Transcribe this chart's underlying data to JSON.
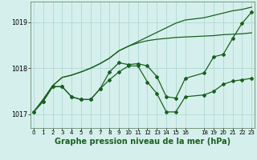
{
  "background_color": "#d5f0ec",
  "grid_color": "#b0d8d5",
  "line_color": "#1a6020",
  "marker_color": "#1a6020",
  "title": "Graphe pression niveau de la mer (hPa)",
  "title_fontsize": 7.0,
  "xlim": [
    -0.3,
    23.3
  ],
  "ylim": [
    1016.7,
    1019.45
  ],
  "yticks": [
    1017,
    1018,
    1019
  ],
  "xticks": [
    0,
    1,
    2,
    3,
    4,
    5,
    6,
    7,
    8,
    9,
    10,
    11,
    12,
    13,
    14,
    15,
    16,
    18,
    19,
    20,
    21,
    22,
    23
  ],
  "series": [
    {
      "x": [
        0,
        1,
        2,
        3,
        4,
        5,
        6,
        7,
        8,
        9,
        10,
        11,
        12,
        13,
        14,
        15,
        16,
        18,
        19,
        20,
        21,
        22,
        23
      ],
      "y": [
        1017.05,
        1017.32,
        1017.62,
        1017.8,
        1017.85,
        1017.92,
        1018.0,
        1018.1,
        1018.22,
        1018.38,
        1018.48,
        1018.58,
        1018.68,
        1018.78,
        1018.88,
        1018.98,
        1019.05,
        1019.1,
        1019.15,
        1019.2,
        1019.25,
        1019.28,
        1019.33
      ],
      "style": "line_only",
      "lw": 0.9
    },
    {
      "x": [
        0,
        1,
        2,
        3,
        4,
        5,
        6,
        7,
        8,
        9,
        10,
        11,
        12,
        13,
        14,
        15,
        16,
        18,
        19,
        20,
        21,
        22,
        23
      ],
      "y": [
        1017.05,
        1017.32,
        1017.62,
        1017.8,
        1017.85,
        1017.92,
        1018.0,
        1018.1,
        1018.22,
        1018.38,
        1018.48,
        1018.55,
        1018.6,
        1018.63,
        1018.65,
        1018.67,
        1018.68,
        1018.7,
        1018.71,
        1018.73,
        1018.74,
        1018.75,
        1018.77
      ],
      "style": "line_only",
      "lw": 0.9
    },
    {
      "x": [
        0,
        1,
        2,
        3,
        4,
        5,
        6,
        7,
        8,
        9,
        10,
        11,
        12,
        13,
        14,
        15,
        16,
        18,
        19,
        20,
        21,
        22,
        23
      ],
      "y": [
        1017.05,
        1017.28,
        1017.6,
        1017.6,
        1017.38,
        1017.32,
        1017.32,
        1017.55,
        1017.75,
        1017.92,
        1018.05,
        1018.05,
        1017.7,
        1017.45,
        1017.05,
        1017.05,
        1017.38,
        1017.42,
        1017.5,
        1017.65,
        1017.72,
        1017.75,
        1017.78
      ],
      "style": "line_marker",
      "lw": 0.9
    },
    {
      "x": [
        0,
        1,
        2,
        3,
        4,
        5,
        6,
        7,
        8,
        9,
        10,
        11,
        12,
        13,
        14,
        15,
        16,
        18,
        19,
        20,
        21,
        22,
        23
      ],
      "y": [
        1017.05,
        1017.28,
        1017.6,
        1017.6,
        1017.38,
        1017.32,
        1017.32,
        1017.55,
        1017.92,
        1018.12,
        1018.08,
        1018.1,
        1018.05,
        1017.82,
        1017.38,
        1017.35,
        1017.78,
        1017.9,
        1018.25,
        1018.3,
        1018.65,
        1018.98,
        1019.22
      ],
      "style": "line_marker",
      "lw": 0.9
    }
  ]
}
